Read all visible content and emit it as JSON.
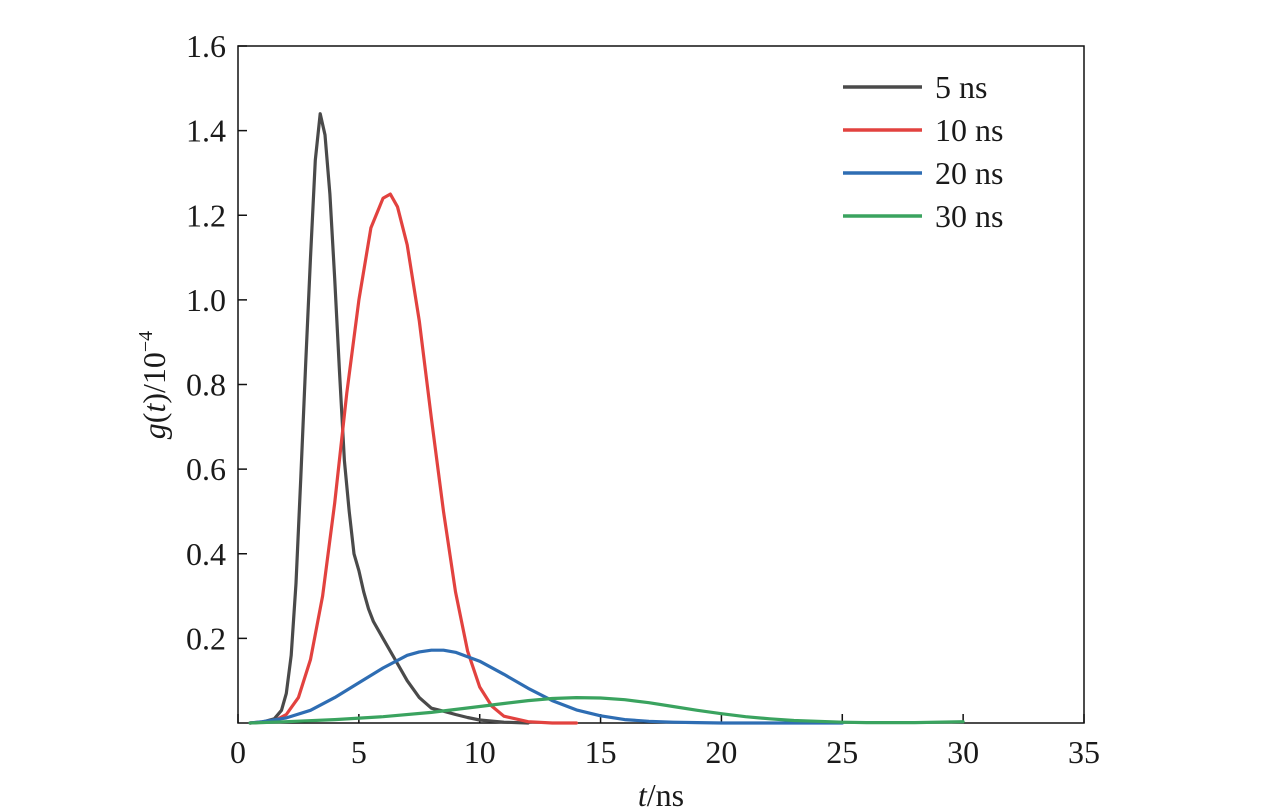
{
  "chart_data": {
    "type": "line",
    "title": "",
    "xlabel": {
      "var": "t",
      "unit": "/ns"
    },
    "ylabel": {
      "var": "g",
      "arg": "t",
      "unit": "/10",
      "exp": "−4"
    },
    "xlim": [
      0,
      35
    ],
    "ylim": [
      0,
      1.6
    ],
    "xticks": [
      "0",
      "5",
      "10",
      "15",
      "20",
      "25",
      "30",
      "35"
    ],
    "yticks": [
      "0.2",
      "0.4",
      "0.6",
      "0.8",
      "1.0",
      "1.2",
      "1.4",
      "1.6"
    ],
    "grid": false,
    "legend_position": "top-right",
    "series": [
      {
        "name": "5 ns",
        "color": "#4a4a4a",
        "x": [
          0.5,
          1.0,
          1.5,
          1.8,
          2.0,
          2.2,
          2.4,
          2.6,
          2.8,
          3.0,
          3.2,
          3.4,
          3.6,
          3.8,
          4.0,
          4.2,
          4.4,
          4.6,
          4.8,
          5.0,
          5.2,
          5.4,
          5.6,
          6.0,
          6.5,
          7.0,
          7.5,
          8.0,
          8.5,
          9.0,
          9.5,
          10.0,
          11.0,
          12.0
        ],
        "y": [
          0.0,
          0.002,
          0.01,
          0.03,
          0.07,
          0.16,
          0.33,
          0.58,
          0.85,
          1.1,
          1.33,
          1.44,
          1.39,
          1.25,
          1.05,
          0.83,
          0.62,
          0.5,
          0.4,
          0.36,
          0.31,
          0.27,
          0.24,
          0.2,
          0.15,
          0.1,
          0.06,
          0.035,
          0.028,
          0.02,
          0.013,
          0.007,
          0.002,
          0.0
        ]
      },
      {
        "name": "10 ns",
        "color": "#e2423f",
        "x": [
          0.5,
          1.5,
          2.0,
          2.5,
          3.0,
          3.5,
          4.0,
          4.5,
          5.0,
          5.5,
          6.0,
          6.3,
          6.6,
          7.0,
          7.5,
          8.0,
          8.5,
          9.0,
          9.5,
          10.0,
          10.5,
          11.0,
          12.0,
          13.0,
          14.0
        ],
        "y": [
          0.0,
          0.005,
          0.02,
          0.06,
          0.15,
          0.3,
          0.52,
          0.78,
          1.0,
          1.17,
          1.24,
          1.25,
          1.22,
          1.13,
          0.95,
          0.72,
          0.5,
          0.31,
          0.17,
          0.085,
          0.04,
          0.016,
          0.003,
          0.0,
          0.0
        ]
      },
      {
        "name": "20 ns",
        "color": "#2e6db3",
        "x": [
          0.5,
          1.0,
          2.0,
          3.0,
          4.0,
          5.0,
          6.0,
          7.0,
          7.5,
          8.0,
          8.5,
          9.0,
          10.0,
          11.0,
          12.0,
          13.0,
          14.0,
          15.0,
          16.0,
          17.0,
          18.0,
          19.0,
          20.0,
          22.0,
          25.0
        ],
        "y": [
          0.0,
          0.003,
          0.012,
          0.03,
          0.06,
          0.095,
          0.13,
          0.16,
          0.168,
          0.172,
          0.172,
          0.167,
          0.146,
          0.115,
          0.082,
          0.053,
          0.031,
          0.017,
          0.008,
          0.004,
          0.002,
          0.001,
          0.0,
          0.0,
          0.0
        ]
      },
      {
        "name": "30 ns",
        "color": "#3aa35f",
        "x": [
          0.5,
          2.0,
          4.0,
          6.0,
          8.0,
          10.0,
          11.0,
          12.0,
          13.0,
          14.0,
          15.0,
          16.0,
          17.0,
          18.0,
          19.0,
          20.0,
          21.0,
          22.0,
          23.0,
          24.0,
          25.0,
          26.0,
          28.0,
          30.0
        ],
        "y": [
          0.0,
          0.003,
          0.008,
          0.015,
          0.025,
          0.039,
          0.046,
          0.053,
          0.058,
          0.06,
          0.059,
          0.055,
          0.048,
          0.039,
          0.03,
          0.022,
          0.015,
          0.01,
          0.006,
          0.004,
          0.002,
          0.001,
          0.001,
          0.003
        ]
      }
    ]
  }
}
